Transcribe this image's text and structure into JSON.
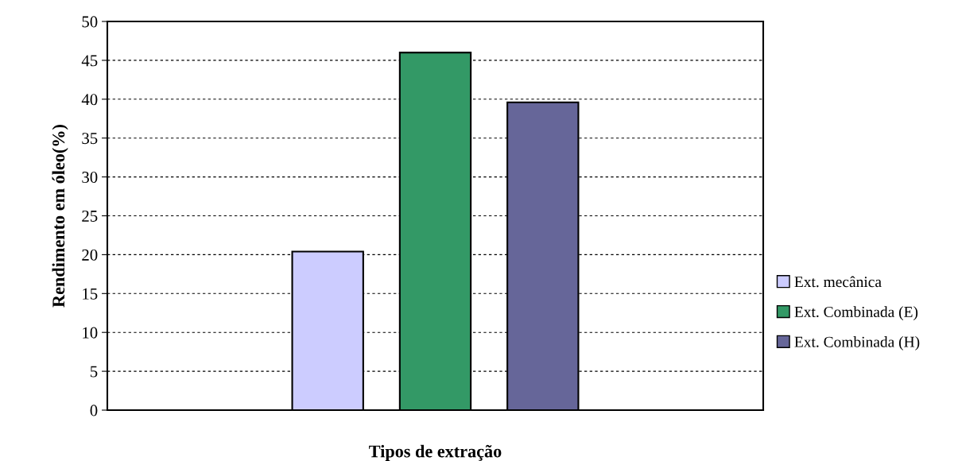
{
  "chart_data": {
    "type": "bar",
    "xlabel": "Tipos de extração",
    "ylabel": "Rendimento em óleo(%)",
    "categories": [
      null
    ],
    "series": [
      {
        "name": "Ext. mecânica",
        "color": "#ccccff",
        "values": [
          20.4
        ]
      },
      {
        "name": "Ext. Combinada (E)",
        "color": "#339966",
        "values": [
          46
        ]
      },
      {
        "name": "Ext. Combinada (H)",
        "color": "#666699",
        "values": [
          39.6
        ]
      }
    ],
    "ylim": [
      0,
      50
    ],
    "yticks": [
      0,
      5,
      10,
      15,
      20,
      25,
      30,
      35,
      40,
      45,
      50
    ],
    "grid": "y",
    "legend": "right"
  }
}
